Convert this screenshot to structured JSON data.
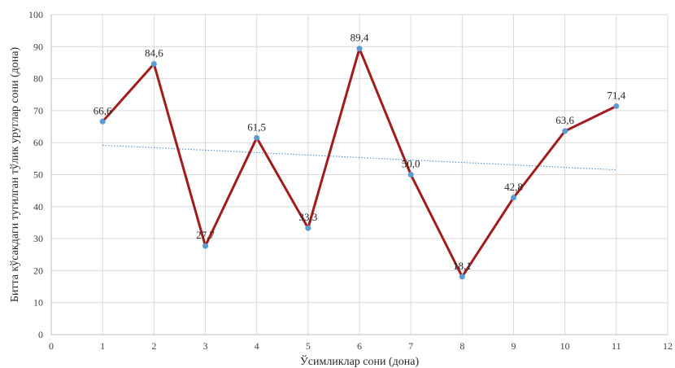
{
  "chart_data": {
    "type": "line",
    "title": "",
    "xlabel": "Ўсимликлар сони (дона)",
    "ylabel": "Битта кўсакдаги тугилган тўлик уруглар сони (дона)",
    "xlim": [
      0,
      12
    ],
    "ylim": [
      0,
      100
    ],
    "xticks": [
      0,
      1,
      2,
      3,
      4,
      5,
      6,
      7,
      8,
      9,
      10,
      11,
      12
    ],
    "yticks": [
      0,
      10,
      20,
      30,
      40,
      50,
      60,
      70,
      80,
      90,
      100
    ],
    "grid": true,
    "legend": "none",
    "series": [
      {
        "x": [
          1,
          2,
          3,
          4,
          5,
          6,
          7,
          8,
          9,
          10,
          11
        ],
        "y": [
          66.6,
          84.6,
          27.7,
          61.5,
          33.3,
          89.4,
          50.0,
          18.1,
          42.8,
          63.6,
          71.4
        ],
        "labels": [
          "66,6",
          "84,6",
          "27,7",
          "61,5",
          "33,3",
          "89,4",
          "50,0",
          "18,1",
          "42,8",
          "63,6",
          "71,4"
        ],
        "line_color": "#a31c1c",
        "marker_color": "#5b9bd5"
      }
    ],
    "trendline": {
      "type": "linear",
      "style": "dotted",
      "color": "#5b9bd5",
      "x": [
        1,
        11
      ],
      "y": [
        59.2,
        51.5
      ]
    }
  }
}
